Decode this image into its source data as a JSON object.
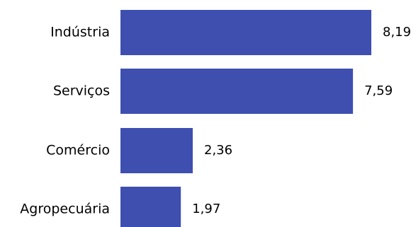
{
  "chart_data": {
    "type": "bar",
    "orientation": "horizontal",
    "categories": [
      "Indústria",
      "Serviços",
      "Comércio",
      "Agropecuária"
    ],
    "values": [
      8.19,
      7.59,
      2.36,
      1.97
    ],
    "value_labels": [
      "8,19",
      "7,59",
      "2,36",
      "1,97"
    ],
    "title": "",
    "xlabel": "",
    "ylabel": "",
    "xlim": [
      0,
      8.19
    ],
    "grid": false,
    "legend": "none",
    "bar_color": "#3f4fb0"
  }
}
